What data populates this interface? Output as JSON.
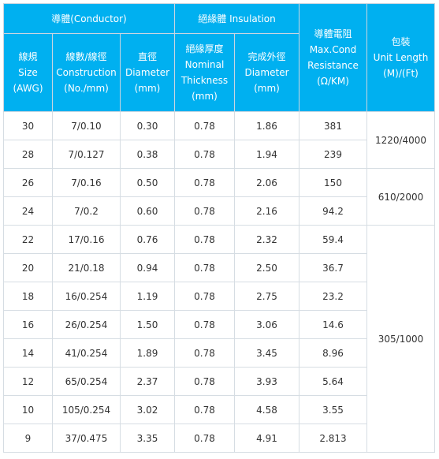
{
  "headers": {
    "conductor": "導體(Conductor)",
    "insulation": "絕緣體 Insulation",
    "resistance": "導體電阻\nMax.Cond\nResistance\n(Ω/KM)",
    "length": "包裝\nUnit Length\n(M)/(Ft)",
    "size": "線規\nSize\n(AWG)",
    "construction": "線數/線徑\nConstruction\n(No./mm)",
    "conductor_diameter": "直徑\nDiameter\n(mm)",
    "thickness": "絕緣厚度\nNominal\nThickness\n(mm)",
    "outer_diameter": "完成外徑\nDiameter\n(mm)"
  },
  "rows": [
    {
      "size": "30",
      "construction": "7/0.10",
      "diameter": "0.30",
      "thickness": "0.78",
      "outer": "1.86",
      "resistance": "381"
    },
    {
      "size": "28",
      "construction": "7/0.127",
      "diameter": "0.38",
      "thickness": "0.78",
      "outer": "1.94",
      "resistance": "239"
    },
    {
      "size": "26",
      "construction": "7/0.16",
      "diameter": "0.50",
      "thickness": "0.78",
      "outer": "2.06",
      "resistance": "150"
    },
    {
      "size": "24",
      "construction": "7/0.2",
      "diameter": "0.60",
      "thickness": "0.78",
      "outer": "2.16",
      "resistance": "94.2"
    },
    {
      "size": "22",
      "construction": "17/0.16",
      "diameter": "0.76",
      "thickness": "0.78",
      "outer": "2.32",
      "resistance": "59.4"
    },
    {
      "size": "20",
      "construction": "21/0.18",
      "diameter": "0.94",
      "thickness": "0.78",
      "outer": "2.50",
      "resistance": "36.7"
    },
    {
      "size": "18",
      "construction": "16/0.254",
      "diameter": "1.19",
      "thickness": "0.78",
      "outer": "2.75",
      "resistance": "23.2"
    },
    {
      "size": "16",
      "construction": "26/0.254",
      "diameter": "1.50",
      "thickness": "0.78",
      "outer": "3.06",
      "resistance": "14.6"
    },
    {
      "size": "14",
      "construction": "41/0.254",
      "diameter": "1.89",
      "thickness": "0.78",
      "outer": "3.45",
      "resistance": "8.96"
    },
    {
      "size": "12",
      "construction": "65/0.254",
      "diameter": "2.37",
      "thickness": "0.78",
      "outer": "3.93",
      "resistance": "5.64"
    },
    {
      "size": "10",
      "construction": "105/0.254",
      "diameter": "3.02",
      "thickness": "0.78",
      "outer": "4.58",
      "resistance": "3.55"
    },
    {
      "size": "9",
      "construction": "37/0.475",
      "diameter": "3.35",
      "thickness": "0.78",
      "outer": "4.91",
      "resistance": "2.813"
    }
  ],
  "lengths": [
    "1220/4000",
    "610/2000",
    "305/1000"
  ]
}
